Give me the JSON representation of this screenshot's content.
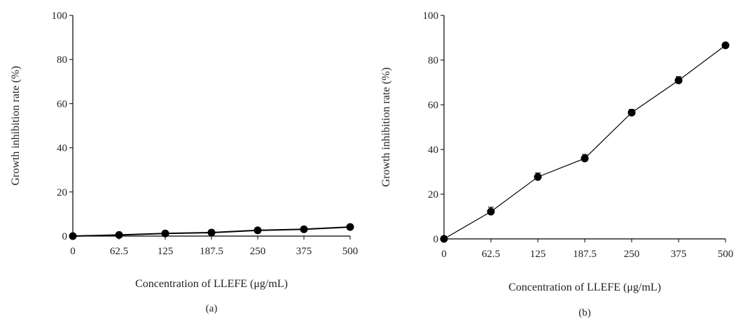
{
  "chart_data": [
    {
      "type": "line",
      "panel_label": "(a)",
      "xlabel": "Concentration of LLEFE (μg/mL)",
      "ylabel": "Growth inhibition rate (%)",
      "categories": [
        "0",
        "62.5",
        "125",
        "187.5",
        "250",
        "375",
        "500"
      ],
      "values": [
        0,
        0.5,
        1.2,
        1.6,
        2.6,
        3.1,
        4.1
      ],
      "errors": [
        0.3,
        0.3,
        0.3,
        0.3,
        0.4,
        0.4,
        0.4
      ],
      "ylim": [
        0,
        100
      ],
      "yticks": [
        "0",
        "20",
        "40",
        "60",
        "80",
        "100"
      ],
      "grid": false,
      "color": "#000000"
    },
    {
      "type": "line",
      "panel_label": "(b)",
      "xlabel": "Concentration of LLEFE (μg/mL)",
      "ylabel": "Growth inhibition rate (%)",
      "categories": [
        "0",
        "62.5",
        "125",
        "187.5",
        "250",
        "375",
        "500"
      ],
      "values": [
        0,
        12.2,
        27.7,
        36.0,
        56.5,
        70.9,
        86.6
      ],
      "errors": [
        0.4,
        2.0,
        1.8,
        1.8,
        1.4,
        1.7,
        1.0
      ],
      "ylim": [
        0,
        100
      ],
      "yticks": [
        "0",
        "20",
        "40",
        "60",
        "80",
        "100"
      ],
      "grid": false,
      "color": "#000000"
    }
  ]
}
